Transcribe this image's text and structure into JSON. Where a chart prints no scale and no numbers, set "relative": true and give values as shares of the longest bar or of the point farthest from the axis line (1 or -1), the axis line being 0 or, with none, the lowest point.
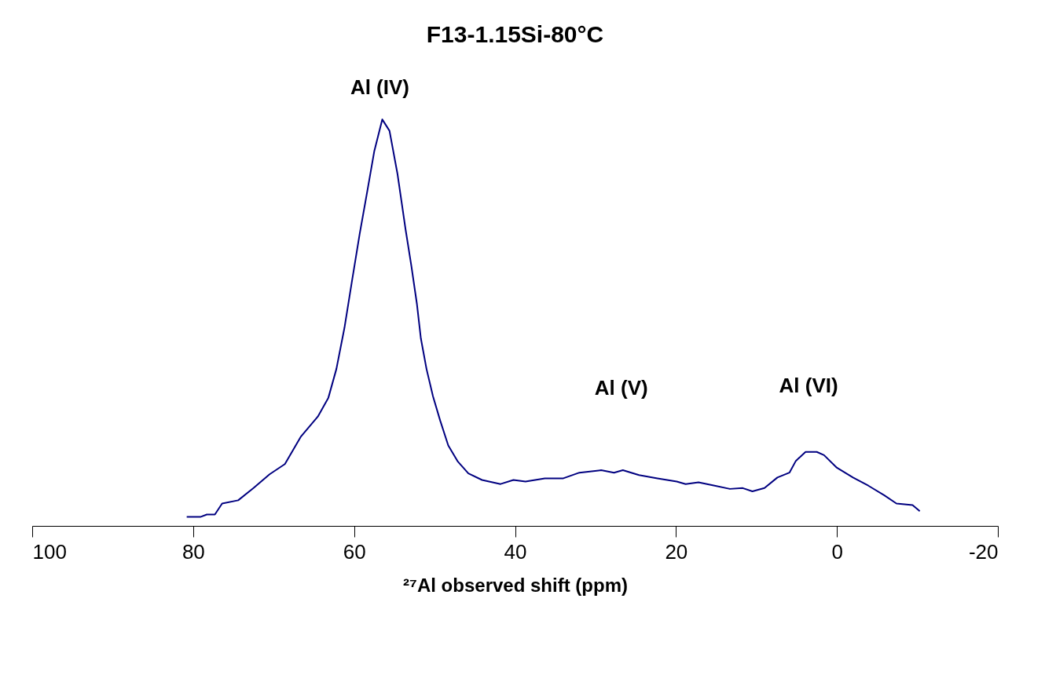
{
  "chart_data": {
    "type": "line",
    "title": "F13-1.15Si-80°C",
    "xlabel": "²⁷Al observed shift (ppm)",
    "relative": true,
    "xlim": [
      100,
      -20
    ],
    "xticks": [
      100,
      80,
      60,
      40,
      20,
      0,
      -20
    ],
    "grid": false,
    "marker": "none",
    "line_style": "solid",
    "x": [
      80.8,
      79.1,
      78.3,
      77.3,
      76.4,
      74.4,
      72.5,
      70.5,
      68.6,
      66.6,
      64.5,
      63.2,
      62.2,
      61.2,
      60.3,
      59.3,
      58.3,
      57.5,
      56.5,
      55.6,
      54.6,
      53.6,
      52.9,
      52.2,
      51.7,
      51.0,
      50.2,
      49.3,
      48.3,
      47.1,
      45.8,
      44.1,
      41.8,
      40.2,
      38.7,
      36.3,
      34.0,
      32.0,
      29.3,
      27.7,
      26.6,
      24.6,
      22.3,
      19.9,
      18.8,
      17.2,
      15.2,
      13.3,
      11.7,
      10.5,
      9.0,
      7.4,
      5.9,
      5.1,
      3.9,
      2.5,
      1.6,
      0.0,
      -2.0,
      -3.9,
      -5.9,
      -7.4,
      -9.4,
      -10.3
    ],
    "series": [
      {
        "color": "#000080",
        "values": [
          0.022,
          0.022,
          0.028,
          0.028,
          0.055,
          0.063,
          0.093,
          0.127,
          0.152,
          0.22,
          0.269,
          0.315,
          0.386,
          0.487,
          0.598,
          0.719,
          0.83,
          0.921,
          1.0,
          0.972,
          0.865,
          0.729,
          0.642,
          0.547,
          0.461,
          0.386,
          0.319,
          0.259,
          0.198,
          0.158,
          0.129,
          0.113,
          0.103,
          0.113,
          0.109,
          0.117,
          0.117,
          0.131,
          0.137,
          0.131,
          0.137,
          0.125,
          0.117,
          0.109,
          0.103,
          0.107,
          0.099,
          0.091,
          0.093,
          0.085,
          0.093,
          0.119,
          0.131,
          0.16,
          0.182,
          0.182,
          0.174,
          0.143,
          0.119,
          0.099,
          0.075,
          0.055,
          0.051,
          0.036
        ]
      }
    ],
    "annotations": [
      "Al (IV)",
      "Al (V)",
      "Al (VI)"
    ]
  }
}
